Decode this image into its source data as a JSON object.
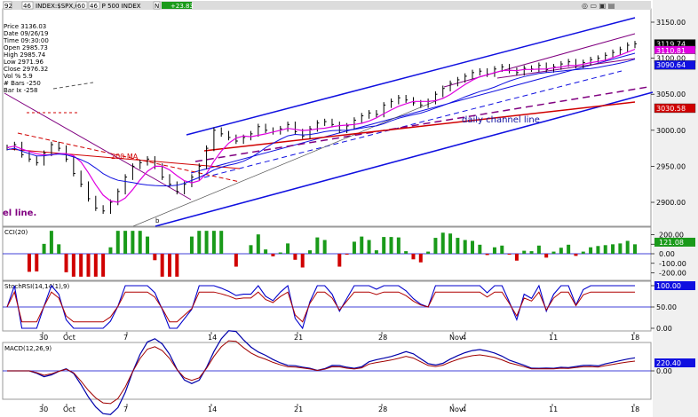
{
  "header": {
    "symbol_box1": "92",
    "symbol_box2": "46",
    "title": "INDEX:$SPX,60  -  S & P 500 INDEX",
    "box3": "60",
    "box4": "46",
    "change": "+23.83",
    "n_label": "N"
  },
  "info_panel": [
    "Price 3136.03",
    "Date 09/26/19",
    "Time 09:30:00",
    "Open 2985.73",
    "High 2985.74",
    "Low 2971.96",
    "Close 2976.32",
    "Vol % 5.9",
    "# Bars -250",
    "Bar Ix -258"
  ],
  "annotations": {
    "daily_channel": "daily channel line",
    "left_channel": "el line.",
    "ma200": "200 MA",
    "b_mark": "b"
  },
  "colors": {
    "price_bar": "#000000",
    "channel_blue": "#1010e0",
    "ma_red": "#d00000",
    "ma_magenta": "#e000e0",
    "purple": "#800080",
    "cci_fill": "#1a9a1a",
    "cci_neg_fill": "#d00000",
    "rsi_blue": "#0000cc",
    "rsi_red": "#b00000",
    "macd_blue": "#0000aa",
    "macd_red": "#a00000",
    "panel_bg": "#ffffff",
    "right_axis_bg": "#e8e8e8"
  },
  "chart_data": {
    "type": "line",
    "title": "INDEX:$SPX,60 - S & P 500 INDEX",
    "price_axis": {
      "ticks": [
        3150,
        3100,
        3050,
        3000,
        2950,
        2900
      ],
      "ylim": [
        2868,
        3166
      ]
    },
    "price_tags": [
      {
        "value": 3119.74,
        "label": "3119.74",
        "bg": "#000000",
        "fg": "#ffffff"
      },
      {
        "value": 3110.81,
        "label": "3110.81",
        "bg": "#e000e0",
        "fg": "#ffffff"
      },
      {
        "value": 3100.0,
        "label": "3100.00",
        "bg": "#ffffff",
        "fg": "#000000"
      },
      {
        "value": 3090.64,
        "label": "3090.64",
        "bg": "#1010e0",
        "fg": "#ffffff"
      },
      {
        "value": 3030.58,
        "label": "3030.58",
        "bg": "#d00000",
        "fg": "#ffffff"
      }
    ],
    "x_dates": [
      "30",
      "Oct",
      "7",
      "14",
      "21",
      "28",
      "Nov",
      "4",
      "11",
      "18"
    ],
    "price_close": [
      2976,
      2980,
      2966,
      2960,
      2955,
      2968,
      2980,
      2975,
      2960,
      2940,
      2925,
      2905,
      2892,
      2888,
      2900,
      2915,
      2935,
      2950,
      2955,
      2960,
      2950,
      2935,
      2925,
      2915,
      2925,
      2935,
      2950,
      2975,
      3000,
      2995,
      2990,
      2985,
      2990,
      2995,
      3005,
      3000,
      2998,
      3002,
      3008,
      2998,
      2992,
      3002,
      3010,
      3012,
      3008,
      3000,
      3006,
      3014,
      3020,
      3024,
      3022,
      3035,
      3040,
      3045,
      3042,
      3038,
      3035,
      3040,
      3050,
      3058,
      3065,
      3070,
      3075,
      3080,
      3082,
      3078,
      3085,
      3088,
      3083,
      3080,
      3086,
      3085,
      3090,
      3084,
      3088,
      3092,
      3095,
      3090,
      3094,
      3098,
      3100,
      3104,
      3108,
      3112,
      3118,
      3120
    ],
    "cci_axis": {
      "ticks": [
        200,
        100,
        0,
        -100,
        -200
      ],
      "ylim": [
        -260,
        260
      ],
      "last_tag": "121.08"
    },
    "stoch_rsi_axis": {
      "label": "StochRSI(14,14(1),9)",
      "ticks": [
        100.0,
        50.0,
        0.0
      ],
      "tick_labels": [
        "100.00",
        "50.00",
        "0.00"
      ],
      "last_tag": "100.00"
    },
    "macd_axis": {
      "label": "MACD(12,26,9)",
      "ticks": [
        0.0
      ],
      "tick_labels": [
        "0.00"
      ],
      "last_tag": "220.40"
    },
    "cci_label": "CCI(20)"
  }
}
